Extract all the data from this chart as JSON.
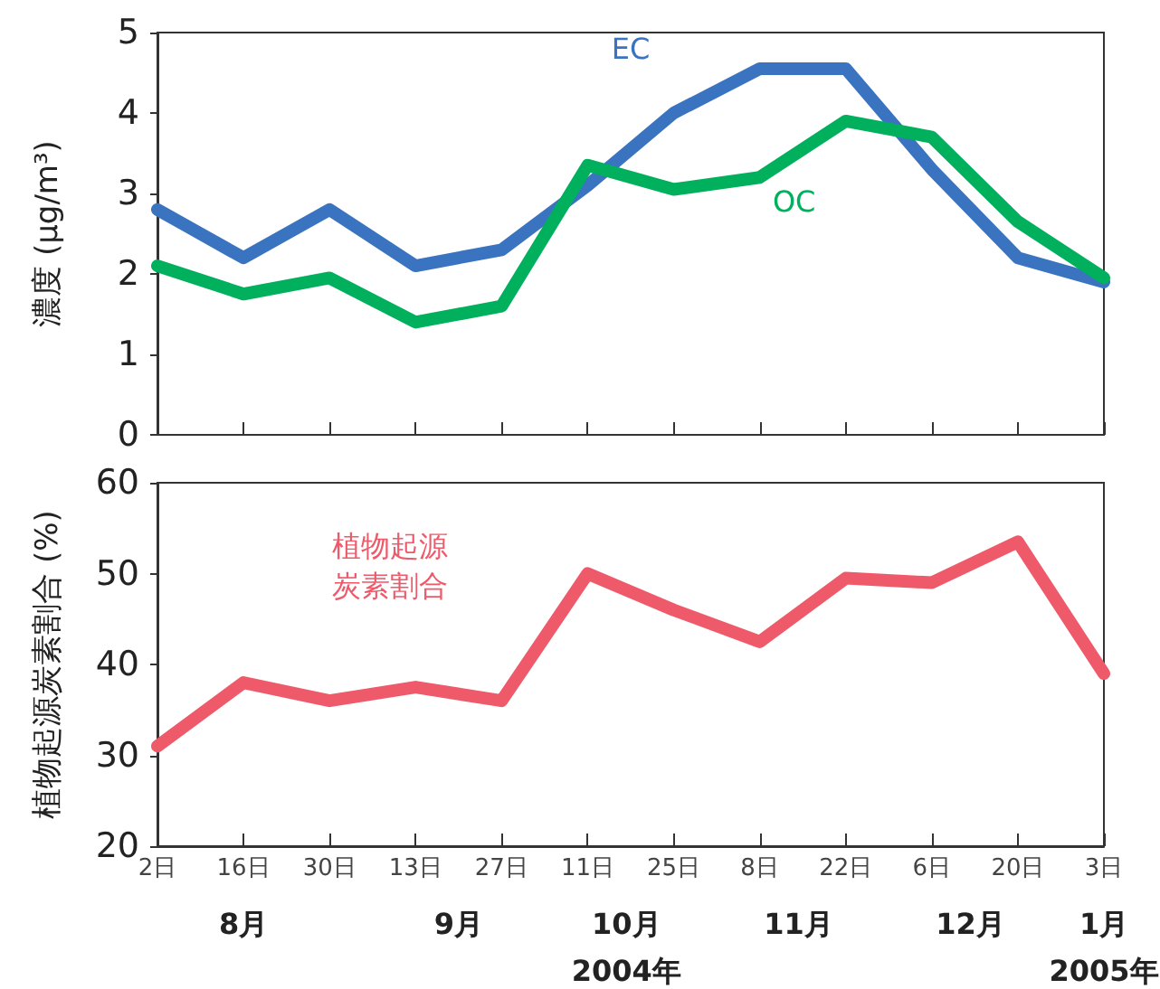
{
  "chart_data": [
    {
      "type": "line",
      "ylabel": "濃度 (μg/m³)",
      "categories": [
        null,
        null,
        null,
        null,
        null,
        null,
        null,
        null,
        null,
        null,
        null,
        null
      ],
      "tick_labels": "y",
      "ylim": [
        0,
        5
      ],
      "yticks": [
        0,
        1,
        2,
        3,
        4,
        5
      ],
      "grid": false,
      "legend": false,
      "marker": "none",
      "line_style": "solid",
      "series": [
        {
          "name": "EC",
          "color": "#3a74c0",
          "values": [
            2.8,
            2.2,
            2.8,
            2.1,
            2.3,
            3.1,
            4.0,
            4.55,
            4.55,
            3.3,
            2.2,
            1.9
          ]
        },
        {
          "name": "OC",
          "color": "#00b05c",
          "values": [
            2.1,
            1.75,
            1.95,
            1.4,
            1.6,
            3.35,
            3.05,
            3.2,
            3.9,
            3.7,
            2.65,
            1.95
          ]
        }
      ]
    },
    {
      "type": "line",
      "ylabel": "植物起源炭素割合 (%)",
      "categories": [
        "2日",
        "16日",
        "30日",
        "13日",
        "27日",
        "11日",
        "25日",
        "8日",
        "22日",
        "6日",
        "20日",
        "3日"
      ],
      "ylim": [
        20,
        60
      ],
      "yticks": [
        20,
        30,
        40,
        50,
        60
      ],
      "grid": false,
      "legend": false,
      "marker": "none",
      "line_style": "solid",
      "series": [
        {
          "name": "植物起源炭素割合",
          "color": "#ee5a6a",
          "values": [
            31,
            38,
            36,
            37.5,
            36,
            50,
            46,
            42.5,
            49.5,
            49,
            53.5,
            39
          ]
        }
      ],
      "annotations": [
        "8月",
        "9月",
        "10月",
        "11月",
        "12月",
        "1月",
        "2004年",
        "2005年"
      ]
    }
  ]
}
